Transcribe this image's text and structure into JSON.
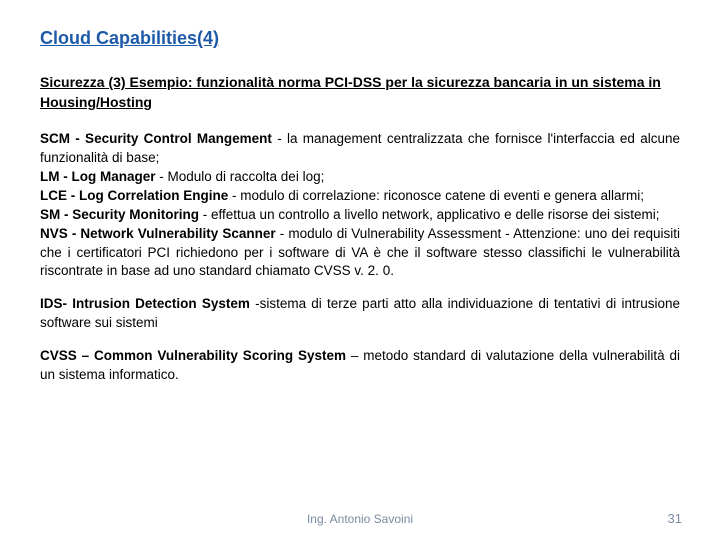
{
  "title": "Cloud Capabilities(4)",
  "subtitle": "Sicurezza (3) Esempio: funzionalità norma PCI-DSS per la sicurezza bancaria in un sistema in Housing/Hosting",
  "paragraphs": {
    "p1": {
      "scm_label": "SCM - Security Control Mangement",
      "scm_text": " - la management centralizzata che fornisce l'interfaccia ed alcune funzionalità di base;",
      "lm_label": "LM - Log Manager",
      "lm_text": " - Modulo di raccolta dei log;",
      "lce_label": "LCE - Log Correlation Engine",
      "lce_text": " - modulo di correlazione: riconosce catene di eventi e genera allarmi;",
      "sm_label": "SM - Security Monitoring",
      "sm_text": " - effettua un controllo a livello network, applicativo e delle risorse dei sistemi;",
      "nvs_label": "NVS - Network Vulnerability Scanner",
      "nvs_text": " - modulo di Vulnerability Assessment - Attenzione: uno dei requisiti che i certificatori PCI richiedono per i software di VA è che il software stesso classifichi le vulnerabilità riscontrate in base ad uno standard chiamato CVSS v. 2. 0."
    },
    "p2": {
      "ids_label": "IDS- Intrusion Detection System",
      "ids_text": " -sistema di terze parti atto alla individuazione di tentativi di intrusione software sui sistemi"
    },
    "p3": {
      "cvss_label": "CVSS – Common Vulnerability Scoring System",
      "cvss_text": " – metodo standard di valutazione della vulnerabilità di un sistema informatico."
    }
  },
  "footer": "Ing. Antonio Savoini",
  "page_number": "31",
  "colors": {
    "title": "#1f5aa8",
    "text": "#000000",
    "footer": "#7b8aa0",
    "background": "#ffffff"
  }
}
